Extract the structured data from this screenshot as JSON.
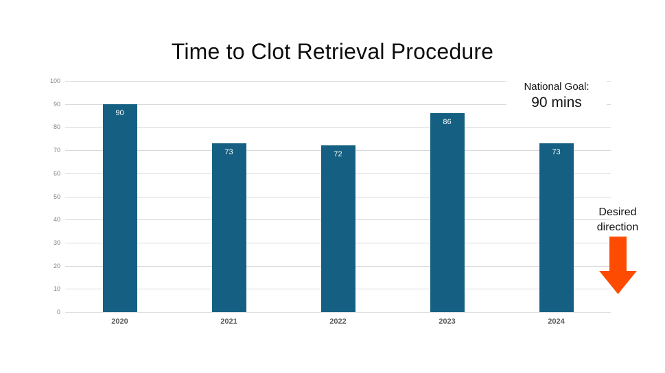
{
  "title": "Time to Clot Retrieval Procedure",
  "chart_data": {
    "type": "bar",
    "title": "Time to Clot Retrieval Procedure",
    "categories": [
      "2020",
      "2021",
      "2022",
      "2023",
      "2024"
    ],
    "values": [
      90,
      73,
      72,
      86,
      73
    ],
    "xlabel": "",
    "ylabel": "",
    "ylim": [
      0,
      100
    ],
    "yticks": [
      0,
      10,
      20,
      30,
      40,
      50,
      60,
      70,
      80,
      90,
      100
    ],
    "grid": true,
    "legend": "none",
    "bar_color": "#156082",
    "value_label_color": "#ffffff"
  },
  "annotations": {
    "goal_label": "National Goal:",
    "goal_value": "90 mins",
    "direction_line1": "Desired",
    "direction_line2": "direction",
    "arrow_icon": "down-arrow-icon",
    "arrow_color": "#fd4c02"
  },
  "colors": {
    "background": "#ffffff",
    "gridline": "#d9d9d9",
    "axis_tick_label": "#808080",
    "category_label": "#595959",
    "title_color": "#0d0d0d"
  }
}
